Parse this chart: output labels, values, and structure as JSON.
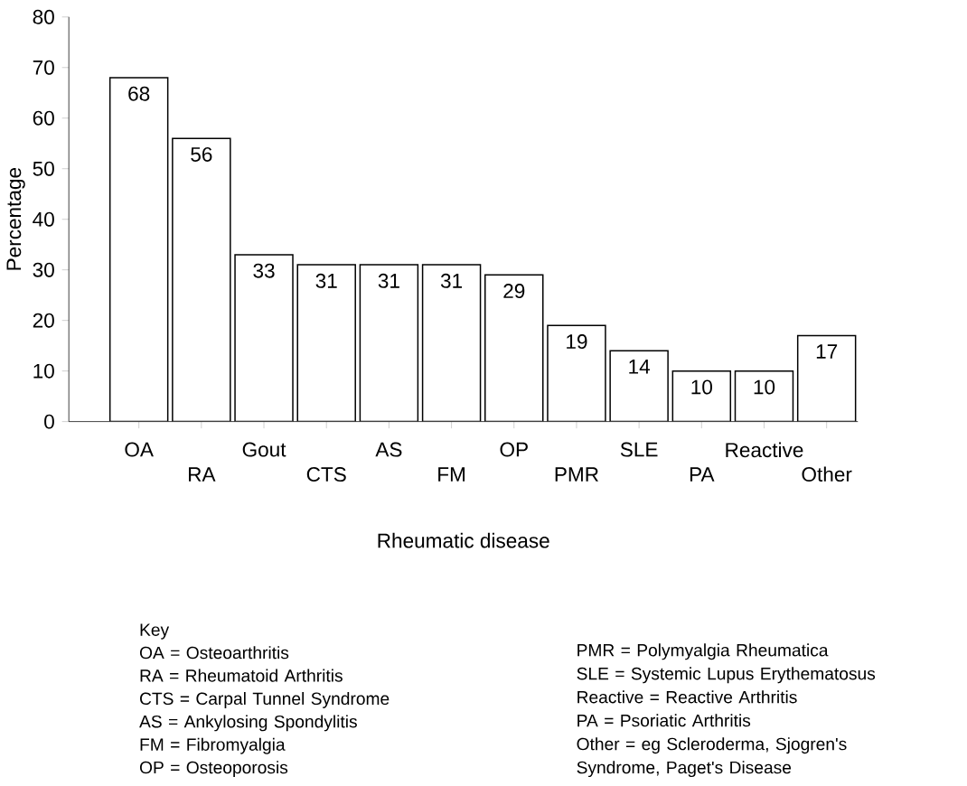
{
  "chart_data": {
    "type": "bar",
    "xlabel": "Rheumatic disease",
    "ylabel": "Percentage",
    "categories": [
      "OA",
      "RA",
      "Gout",
      "CTS",
      "AS",
      "FM",
      "OP",
      "PMR",
      "SLE",
      "PA",
      "Reactive",
      "Other"
    ],
    "values": [
      68,
      56,
      33,
      31,
      31,
      31,
      29,
      19,
      14,
      10,
      10,
      17
    ],
    "color": "#ffffff",
    "data_labels": true,
    "grid": false,
    "ylim": [
      0,
      80
    ],
    "yticks": [
      0,
      10,
      20,
      30,
      40,
      50,
      60,
      70,
      80
    ],
    "annotations": [
      "Key",
      "OA = Osteoarthritis",
      "RA = Rheumatoid Arthritis",
      "CTS = Carpal Tunnel Syndrome",
      "AS = Ankylosing Spondylitis",
      "FM = Fibromyalgia",
      "OP = Osteoporosis",
      "PMR = Polymyalgia Rheumatica",
      "SLE = Systemic Lupus Erythematosus",
      "Reactive = Reactive Arthritis",
      "PA = Psoriatic Arthritis",
      "Other = eg Scleroderma, Sjogren's Syndrome, Paget's Disease"
    ]
  }
}
